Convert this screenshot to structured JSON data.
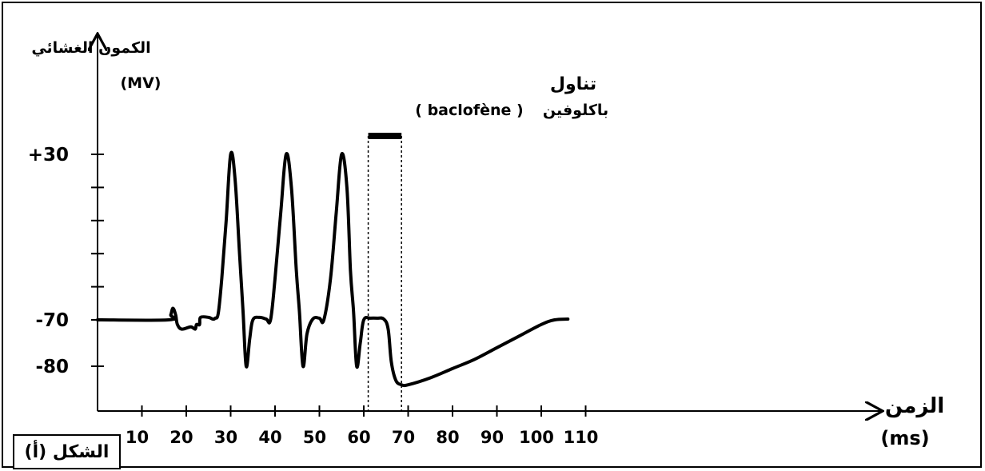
{
  "figure_label": "الشكل (أ)",
  "chart_data": {
    "type": "line",
    "ylabel": "الكمون الغشائي",
    "ylabel_unit": "(MV)",
    "xlabel": "الزمن",
    "xlabel_unit": "(ms)",
    "x_ticks": [
      10,
      20,
      30,
      40,
      50,
      60,
      70,
      80,
      90,
      100,
      110
    ],
    "y_tick_labels": [
      {
        "value": 30,
        "label": "+30"
      },
      {
        "value": -70,
        "label": "-70"
      },
      {
        "value": -80,
        "label": "-80"
      }
    ],
    "xlim": [
      0,
      118
    ],
    "ylim": [
      -90,
      42
    ],
    "annotation": {
      "line1": "تناول",
      "line2": "باكلوفين",
      "line2_latin": "( baclofène )",
      "start_ms": 61,
      "end_ms": 68.5
    },
    "series": [
      {
        "points": [
          [
            0,
            -70
          ],
          [
            16,
            -70
          ],
          [
            16.5,
            -67
          ],
          [
            17,
            -63
          ],
          [
            17.6,
            -67
          ],
          [
            18,
            -71
          ],
          [
            19,
            -72
          ],
          [
            21,
            -71.5
          ],
          [
            22,
            -72
          ],
          [
            22.3,
            -71
          ],
          [
            23,
            -71
          ],
          [
            23.2,
            -68.5
          ],
          [
            25,
            -68.5
          ],
          [
            26,
            -69.5
          ],
          [
            26.5,
            -69
          ],
          [
            27.2,
            -66
          ],
          [
            28,
            -45
          ],
          [
            29,
            -10
          ],
          [
            30,
            30
          ],
          [
            31,
            15
          ],
          [
            32,
            -30
          ],
          [
            32.8,
            -65
          ],
          [
            33.5,
            -80
          ],
          [
            34.3,
            -74
          ],
          [
            35,
            -70
          ],
          [
            36.5,
            -68.5
          ],
          [
            38,
            -69.5
          ],
          [
            39,
            -70
          ],
          [
            40,
            -45
          ],
          [
            41.3,
            -5
          ],
          [
            42.5,
            30
          ],
          [
            43.7,
            10
          ],
          [
            44.8,
            -40
          ],
          [
            45.5,
            -65
          ],
          [
            46.3,
            -80
          ],
          [
            47.2,
            -73
          ],
          [
            48.5,
            -69.5
          ],
          [
            50,
            -69
          ],
          [
            51,
            -70
          ],
          [
            52.5,
            -45
          ],
          [
            53.8,
            -5
          ],
          [
            55,
            30
          ],
          [
            56.2,
            10
          ],
          [
            57,
            -40
          ],
          [
            57.7,
            -65
          ],
          [
            58.4,
            -80
          ],
          [
            59.2,
            -75
          ],
          [
            60,
            -70
          ],
          [
            61.5,
            -69
          ],
          [
            63,
            -69
          ],
          [
            64.5,
            -69.5
          ],
          [
            65.5,
            -72
          ],
          [
            66.2,
            -79
          ],
          [
            67.2,
            -83
          ],
          [
            68.5,
            -84
          ],
          [
            70,
            -84
          ],
          [
            75,
            -82.5
          ],
          [
            80,
            -80.5
          ],
          [
            85,
            -78.5
          ],
          [
            90,
            -76
          ],
          [
            95,
            -73.5
          ],
          [
            100,
            -71
          ],
          [
            103,
            -70
          ],
          [
            106,
            -69.5
          ]
        ]
      }
    ]
  }
}
